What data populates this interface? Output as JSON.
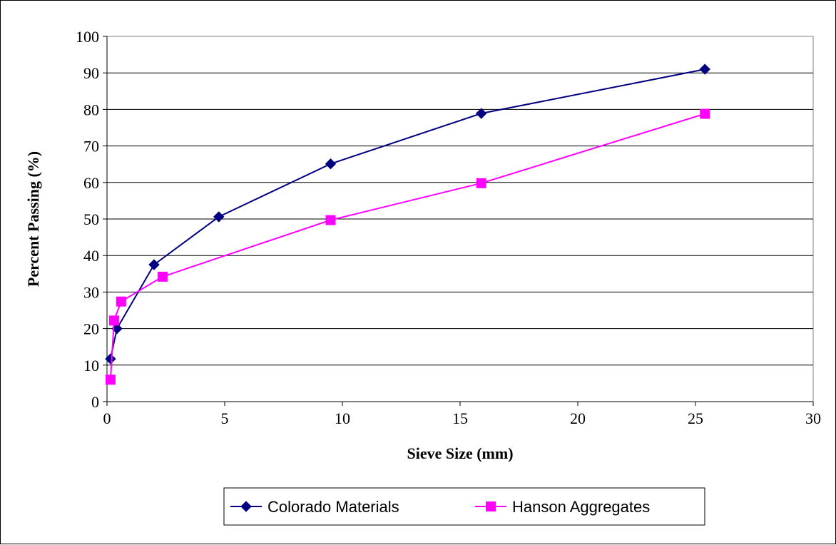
{
  "chart_data": {
    "type": "line",
    "title": "",
    "xlabel": "Sieve Size (mm)",
    "ylabel": "Percent Passing (%)",
    "xlim": [
      0,
      30
    ],
    "ylim": [
      0,
      100
    ],
    "x_ticks": [
      0,
      5,
      10,
      15,
      20,
      25,
      30
    ],
    "y_ticks": [
      0,
      10,
      20,
      30,
      40,
      50,
      60,
      70,
      80,
      90,
      100
    ],
    "grid": "horizontal",
    "legend_position": "bottom",
    "series": [
      {
        "name": "Colorado Materials",
        "color": "#000080",
        "marker": "diamond",
        "points": [
          {
            "x": 0.15,
            "y": 11.7
          },
          {
            "x": 0.425,
            "y": 20
          },
          {
            "x": 2.0,
            "y": 37.5
          },
          {
            "x": 4.75,
            "y": 50.6
          },
          {
            "x": 9.5,
            "y": 65.1
          },
          {
            "x": 15.9,
            "y": 78.9
          },
          {
            "x": 25.4,
            "y": 91
          }
        ]
      },
      {
        "name": "Hanson Aggregates",
        "color": "#FF00FF",
        "marker": "square",
        "points": [
          {
            "x": 0.15,
            "y": 6
          },
          {
            "x": 0.3,
            "y": 22.2
          },
          {
            "x": 0.6,
            "y": 27.4
          },
          {
            "x": 2.36,
            "y": 34.2
          },
          {
            "x": 9.5,
            "y": 49.7
          },
          {
            "x": 15.9,
            "y": 59.8
          },
          {
            "x": 25.4,
            "y": 78.8
          }
        ]
      }
    ]
  }
}
